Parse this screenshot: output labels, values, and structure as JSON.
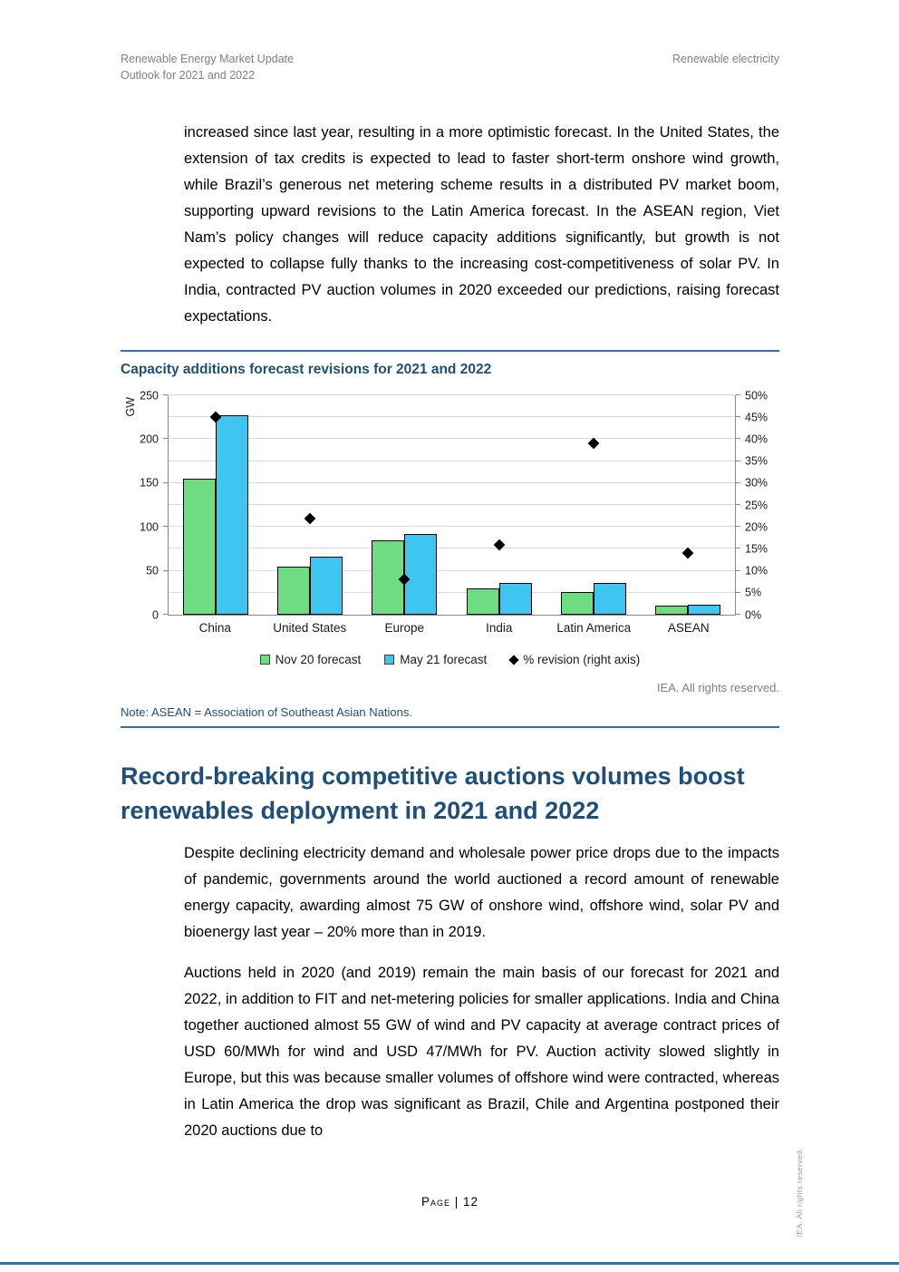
{
  "page": {
    "header_left_line1": "Renewable Energy Market Update",
    "header_left_line2": "Outlook for 2021 and 2022",
    "header_right": "Renewable electricity",
    "footer_label": "Page | 12",
    "side_vertical_note": "IEA. All rights reserved."
  },
  "colors": {
    "accent_rule": "#2E74B5",
    "heading_blue": "#1F4E79",
    "bar_green": "#6EDC81",
    "bar_cyan": "#3EC6F0",
    "marker_black": "#000000"
  },
  "content": {
    "intro_paragraph": "increased since last year, resulting in a more optimistic forecast. In the United States, the extension of tax credits is expected to lead to faster short-term onshore wind growth, while Brazil’s generous net metering scheme results in a distributed PV market boom, supporting upward revisions to the Latin America forecast. In the ASEAN region, Viet Nam’s policy changes will reduce capacity additions significantly, but growth is not expected to collapse fully thanks to the increasing cost-competitiveness of solar PV. In India, contracted PV auction volumes in 2020 exceeded our predictions, raising forecast expectations."
  },
  "chart": {
    "attribution": "IEA. All rights reserved.",
    "note": "Note: ASEAN = Association of Southeast Asian Nations."
  },
  "chart_data": {
    "type": "bar",
    "title": "Capacity additions forecast revisions for 2021 and 2022",
    "categories": [
      "China",
      "United States",
      "Europe",
      "India",
      "Latin America",
      "ASEAN"
    ],
    "series": [
      {
        "name": "Nov 20 forecast",
        "type": "bar",
        "axis": "left",
        "color": "#6EDC81",
        "values": [
          155,
          55,
          85,
          30,
          26,
          10
        ]
      },
      {
        "name": "May 21 forecast",
        "type": "bar",
        "axis": "left",
        "color": "#3EC6F0",
        "values": [
          227,
          66,
          92,
          36,
          36,
          11
        ]
      },
      {
        "name": "% revision (right axis)",
        "type": "scatter",
        "axis": "right",
        "color": "#000000",
        "values": [
          45,
          22,
          8,
          16,
          39,
          14
        ]
      }
    ],
    "left_axis": {
      "label": "GW",
      "min": 0,
      "max": 250,
      "step": 50
    },
    "right_axis": {
      "min": 0,
      "max": 50,
      "step": 5,
      "suffix": "%"
    },
    "grid": true,
    "legend_position": "bottom"
  },
  "section": {
    "heading": "Record-breaking competitive auctions volumes boost renewables deployment in 2021 and 2022",
    "para1": "Despite declining electricity demand and wholesale power price drops due to the impacts of pandemic, governments around the world auctioned a record amount of renewable energy capacity, awarding almost 75 GW of onshore wind, offshore wind, solar PV and bioenergy last year – 20% more than in 2019.",
    "para2": "Auctions held in 2020 (and 2019) remain the main basis of our forecast for 2021 and 2022, in addition to FIT and net-metering policies for smaller applications. India and China together auctioned almost 55 GW of wind and PV capacity at average contract prices of USD 60/MWh for wind and USD 47/MWh for PV. Auction activity slowed slightly in Europe, but this was because smaller volumes of offshore wind were contracted, whereas in Latin America the drop was significant as Brazil, Chile and Argentina postponed their 2020 auctions due to"
  }
}
